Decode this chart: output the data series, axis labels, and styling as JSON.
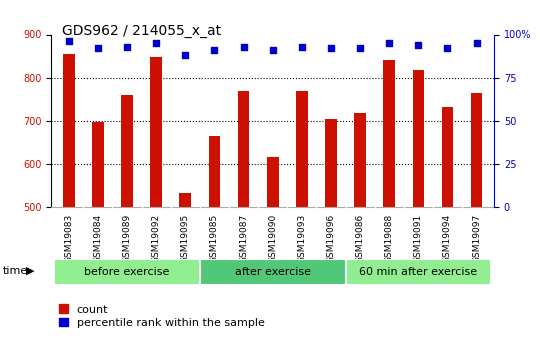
{
  "title": "GDS962 / 214055_x_at",
  "samples": [
    "GSM19083",
    "GSM19084",
    "GSM19089",
    "GSM19092",
    "GSM19095",
    "GSM19085",
    "GSM19087",
    "GSM19090",
    "GSM19093",
    "GSM19096",
    "GSM19086",
    "GSM19088",
    "GSM19091",
    "GSM19094",
    "GSM19097"
  ],
  "counts": [
    855,
    697,
    760,
    848,
    533,
    665,
    768,
    617,
    770,
    705,
    718,
    840,
    818,
    733,
    765
  ],
  "percentile": [
    96,
    92,
    93,
    95,
    88,
    91,
    93,
    91,
    93,
    92,
    92,
    95,
    94,
    92,
    95
  ],
  "groups": [
    {
      "label": "before exercise",
      "start": 0,
      "end": 5,
      "color": "#90ee90"
    },
    {
      "label": "after exercise",
      "start": 5,
      "end": 10,
      "color": "#50c878"
    },
    {
      "label": "60 min after exercise",
      "start": 10,
      "end": 15,
      "color": "#90ee90"
    }
  ],
  "ylim_left": [
    500,
    900
  ],
  "ylim_right": [
    0,
    100
  ],
  "yticks_left": [
    500,
    600,
    700,
    800,
    900
  ],
  "yticks_right": [
    0,
    25,
    50,
    75,
    100
  ],
  "bar_color": "#cc1100",
  "dot_color": "#0000cc",
  "bar_width": 0.4,
  "background_color": "#ffffff",
  "grid_color": "#000000",
  "tick_label_color_left": "#cc1100",
  "tick_label_color_right": "#0000cc",
  "title_fontsize": 10,
  "label_fontsize": 7,
  "legend_fontsize": 8,
  "dot_size": 25,
  "right_ytick_labels": [
    "0",
    "25",
    "50",
    "75",
    "100%"
  ],
  "group_label_fontsize": 8
}
